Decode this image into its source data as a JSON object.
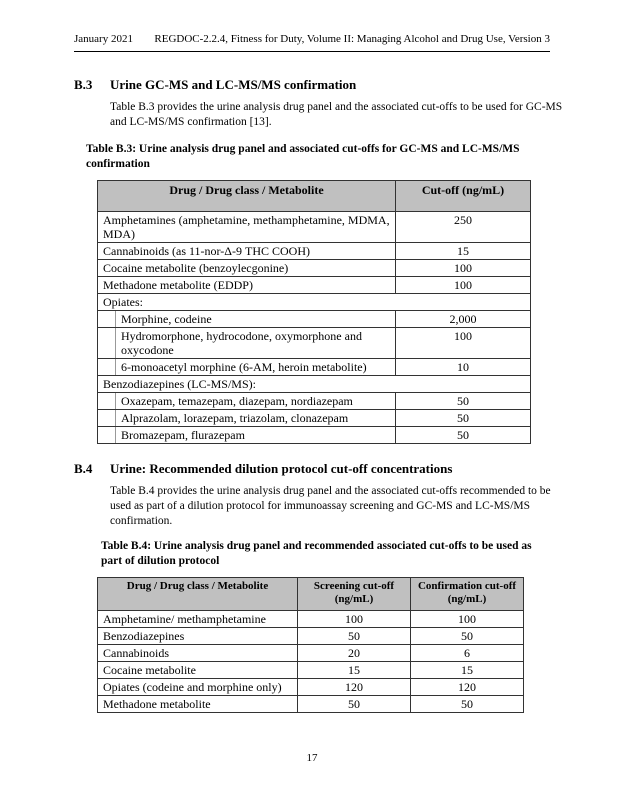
{
  "header": {
    "date": "January 2021",
    "doc_title": "REGDOC-2.2.4, Fitness for Duty, Volume II: Managing Alcohol and Drug Use, Version 3"
  },
  "section_b3": {
    "number": "B.3",
    "title": "Urine GC-MS and LC-MS/MS confirmation",
    "intro": "Table B.3 provides the urine analysis drug panel and the associated cut-offs to be used for GC-MS and LC-MS/MS confirmation [13].",
    "caption": "Table B.3: Urine analysis drug panel and associated cut-offs for GC-MS and LC-MS/MS confirmation",
    "table": {
      "columns": [
        "Drug / Drug class / Metabolite",
        "Cut-off (ng/mL)"
      ],
      "rows": [
        {
          "style": "plain",
          "drug": "Amphetamines (amphetamine, methamphetamine, MDMA, MDA)",
          "cutoff": "250"
        },
        {
          "style": "plain",
          "drug": "Cannabinoids (as 11-nor-Δ-9 THC COOH)",
          "cutoff": "15"
        },
        {
          "style": "plain",
          "drug": "Cocaine metabolite (benzoylecgonine)",
          "cutoff": "100"
        },
        {
          "style": "plain",
          "drug": "Methadone metabolite (EDDP)",
          "cutoff": "100"
        },
        {
          "style": "group",
          "drug": "Opiates:",
          "cutoff": ""
        },
        {
          "style": "indent",
          "drug": "Morphine, codeine",
          "cutoff": "2,000"
        },
        {
          "style": "indent",
          "drug": "Hydromorphone, hydrocodone, oxymorphone and oxycodone",
          "cutoff": "100"
        },
        {
          "style": "indent",
          "drug": "6-monoacetyl morphine (6-AM, heroin metabolite)",
          "cutoff": "10"
        },
        {
          "style": "group",
          "drug": "Benzodiazepines (LC-MS/MS):",
          "cutoff": ""
        },
        {
          "style": "indent",
          "drug": "Oxazepam, temazepam, diazepam, nordiazepam",
          "cutoff": "50"
        },
        {
          "style": "indent",
          "drug": "Alprazolam, lorazepam, triazolam, clonazepam",
          "cutoff": "50"
        },
        {
          "style": "indent",
          "drug": "Bromazepam, flurazepam",
          "cutoff": "50"
        }
      ]
    }
  },
  "section_b4": {
    "number": "B.4",
    "title": "Urine: Recommended dilution protocol cut-off concentrations",
    "intro": "Table B.4 provides the urine analysis drug panel and the associated cut-offs recommended to be used as part of a dilution protocol for immunoassay screening and GC-MS and LC-MS/MS confirmation.",
    "caption": "Table B.4: Urine analysis drug panel and recommended associated cut-offs to be used as part of dilution protocol",
    "table": {
      "columns": [
        "Drug / Drug class / Metabolite",
        "Screening cut-off\n(ng/mL)",
        "Confirmation cut-off\n(ng/mL)"
      ],
      "rows": [
        {
          "drug": "Amphetamine/ methamphetamine",
          "screening": "100",
          "confirmation": "100"
        },
        {
          "drug": "Benzodiazepines",
          "screening": "50",
          "confirmation": "50"
        },
        {
          "drug": "Cannabinoids",
          "screening": "20",
          "confirmation": "6"
        },
        {
          "drug": "Cocaine metabolite",
          "screening": "15",
          "confirmation": "15"
        },
        {
          "drug": "Opiates (codeine and morphine only)",
          "screening": "120",
          "confirmation": "120"
        },
        {
          "drug": "Methadone metabolite",
          "screening": "50",
          "confirmation": "50"
        }
      ]
    }
  },
  "footer": {
    "page_number": "17"
  },
  "colors": {
    "table_header_bg": "#c0c0c0",
    "border": "#333333",
    "text": "#000000"
  }
}
